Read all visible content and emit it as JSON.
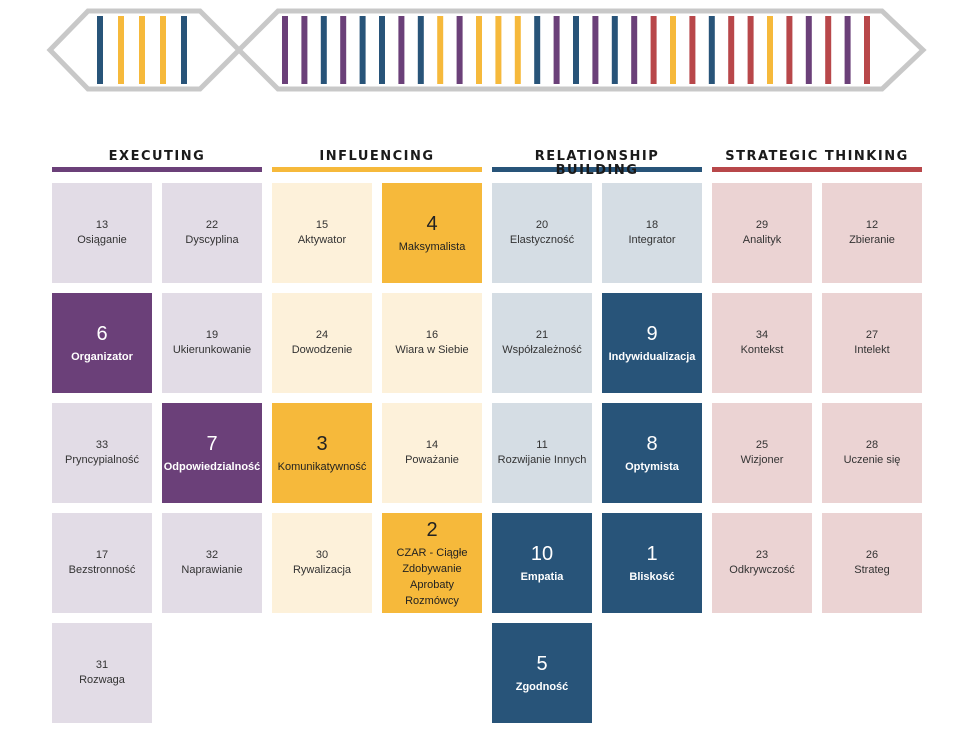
{
  "colors": {
    "executing": "#6b4079",
    "influencing": "#f6b93b",
    "relationship": "#285479",
    "strategic": "#b8474a",
    "executing_light": "#e2dce6",
    "influencing_light": "#fdf1da",
    "relationship_light": "#d5dde4",
    "strategic_light": "#ebd3d3",
    "strand": "#c8c8c8"
  },
  "dna_strip": {
    "top5": [
      "relationship",
      "influencing",
      "influencing",
      "influencing",
      "relationship"
    ],
    "rest": [
      "executing",
      "executing",
      "relationship",
      "executing",
      "relationship",
      "relationship",
      "executing",
      "relationship",
      "influencing",
      "executing",
      "influencing",
      "influencing",
      "influencing",
      "relationship",
      "executing",
      "relationship",
      "executing",
      "relationship",
      "executing",
      "strategic",
      "influencing",
      "strategic",
      "relationship",
      "strategic",
      "strategic",
      "influencing",
      "strategic",
      "executing",
      "strategic",
      "executing",
      "strategic"
    ]
  },
  "domains": [
    {
      "key": "executing",
      "title": "EXECUTING",
      "themes": [
        {
          "rank": "13",
          "name": "Osiąganie",
          "top": false
        },
        {
          "rank": "22",
          "name": "Dyscyplina",
          "top": false
        },
        {
          "rank": "6",
          "name": "Organizator",
          "top": true
        },
        {
          "rank": "19",
          "name": "Ukierunkowanie",
          "top": false
        },
        {
          "rank": "33",
          "name": "Pryncypialność",
          "top": false
        },
        {
          "rank": "7",
          "name": "Odpowiedzialność",
          "top": true
        },
        {
          "rank": "17",
          "name": "Bezstronność",
          "top": false
        },
        {
          "rank": "32",
          "name": "Naprawianie",
          "top": false
        },
        {
          "rank": "31",
          "name": "Rozwaga",
          "top": false
        }
      ]
    },
    {
      "key": "influencing",
      "title": "INFLUENCING",
      "themes": [
        {
          "rank": "15",
          "name": "Aktywator",
          "top": false
        },
        {
          "rank": "4",
          "name": "Maksymalista",
          "top": true
        },
        {
          "rank": "24",
          "name": "Dowodzenie",
          "top": false
        },
        {
          "rank": "16",
          "name": "Wiara w Siebie",
          "top": false
        },
        {
          "rank": "3",
          "name": "Komunikatywność",
          "top": true
        },
        {
          "rank": "14",
          "name": "Poważanie",
          "top": false
        },
        {
          "rank": "30",
          "name": "Rywalizacja",
          "top": false
        },
        {
          "rank": "2",
          "name": "CZAR - Ciągłe Zdobywanie Aprobaty Rozmówcy",
          "top": true
        }
      ]
    },
    {
      "key": "relationship",
      "title": "RELATIONSHIP BUILDING",
      "themes": [
        {
          "rank": "20",
          "name": "Elastyczność",
          "top": false
        },
        {
          "rank": "18",
          "name": "Integrator",
          "top": false
        },
        {
          "rank": "21",
          "name": "Współzależność",
          "top": false
        },
        {
          "rank": "9",
          "name": "Indywidualizacja",
          "top": true
        },
        {
          "rank": "11",
          "name": "Rozwijanie Innych",
          "top": false
        },
        {
          "rank": "8",
          "name": "Optymista",
          "top": true
        },
        {
          "rank": "10",
          "name": "Empatia",
          "top": true
        },
        {
          "rank": "1",
          "name": "Bliskość",
          "top": true
        },
        {
          "rank": "5",
          "name": "Zgodność",
          "top": true
        }
      ]
    },
    {
      "key": "strategic",
      "title": "STRATEGIC THINKING",
      "themes": [
        {
          "rank": "29",
          "name": "Analityk",
          "top": false
        },
        {
          "rank": "12",
          "name": "Zbieranie",
          "top": false
        },
        {
          "rank": "34",
          "name": "Kontekst",
          "top": false
        },
        {
          "rank": "27",
          "name": "Intelekt",
          "top": false
        },
        {
          "rank": "25",
          "name": "Wizjoner",
          "top": false
        },
        {
          "rank": "28",
          "name": "Uczenie się",
          "top": false
        },
        {
          "rank": "23",
          "name": "Odkrywczość",
          "top": false
        },
        {
          "rank": "26",
          "name": "Strateg",
          "top": false
        }
      ]
    }
  ]
}
